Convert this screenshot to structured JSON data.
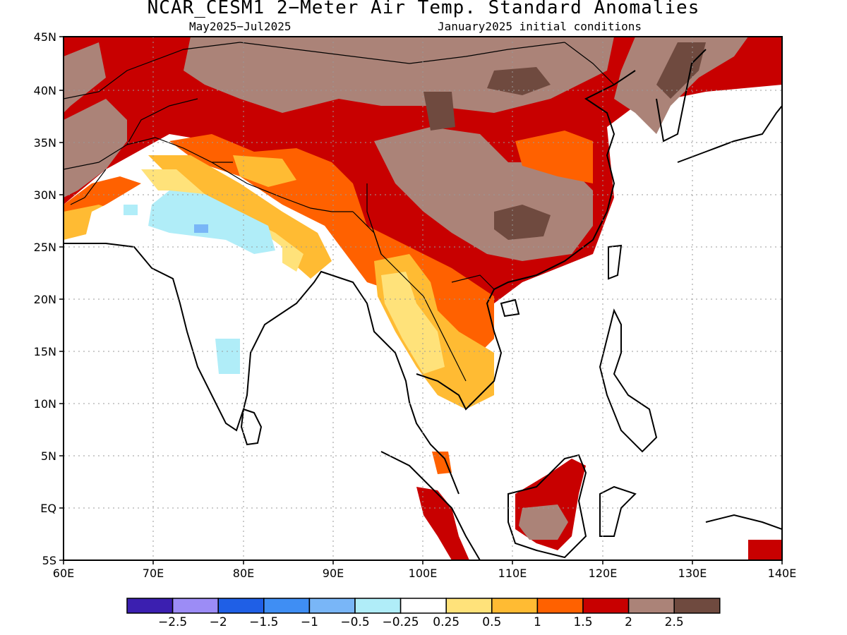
{
  "title": "NCAR_CESM1 2−Meter Air Temp. Standard Anomalies",
  "subtitle_left": "May2025−Jul2025",
  "subtitle_right": "January2025 initial conditions",
  "lat_labels": [
    "45N",
    "40N",
    "35N",
    "30N",
    "25N",
    "20N",
    "15N",
    "10N",
    "5N",
    "EQ",
    "5S"
  ],
  "lon_labels": [
    "60E",
    "70E",
    "80E",
    "90E",
    "100E",
    "110E",
    "120E",
    "130E",
    "140E"
  ],
  "legend": {
    "colors": [
      "#3b1fb0",
      "#9c8cf6",
      "#1f5fe6",
      "#3f8ef4",
      "#79b6f7",
      "#b0edf8",
      "#ffffff",
      "#ffe27a",
      "#ffbb33",
      "#ff6100",
      "#c80000",
      "#ab8378",
      "#6f4a3f"
    ],
    "labels": [
      "−2.5",
      "−2",
      "−1.5",
      "−1",
      "−0.5",
      "−0.25",
      "0.25",
      "0.5",
      "1",
      "1.5",
      "2",
      "2.5"
    ]
  }
}
